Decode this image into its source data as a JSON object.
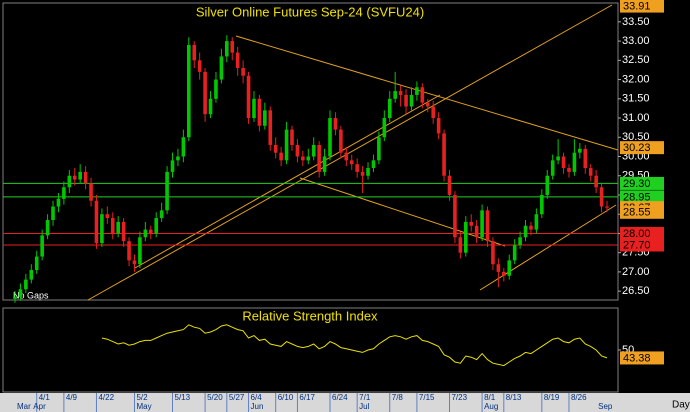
{
  "chart_data": {
    "type": "candlestick",
    "title": "Silver Online Futures Sep-24 (SVFU24)",
    "note": "No Gaps",
    "period": "Day",
    "up_color": "#00c800",
    "down_color": "#e82020",
    "ylim": [
      26.27,
      33.99
    ],
    "yticks": [
      {
        "value": 26.5,
        "label": "26.50"
      },
      {
        "value": 27,
        "label": "27.00"
      },
      {
        "value": 27.5,
        "label": "27.50"
      },
      {
        "value": 28,
        "label": "28.00"
      },
      {
        "value": 28.5,
        "label": "28.50"
      },
      {
        "value": 29,
        "label": "29.00"
      },
      {
        "value": 29.5,
        "label": "29.50"
      },
      {
        "value": 30,
        "label": "30.00"
      },
      {
        "value": 30.5,
        "label": "30.50"
      },
      {
        "value": 31,
        "label": "31.00"
      },
      {
        "value": 31.5,
        "label": "31.50"
      },
      {
        "value": 32,
        "label": "32.00"
      },
      {
        "value": 32.5,
        "label": "32.50"
      },
      {
        "value": 33,
        "label": "33.00"
      },
      {
        "value": 33.5,
        "label": "33.50"
      }
    ],
    "price_markers": [
      {
        "value": 33.91,
        "label": "33.91",
        "color": "#f0a020",
        "line": false
      },
      {
        "value": 30.23,
        "label": "30.23",
        "color": "#f0a020",
        "line": false
      },
      {
        "value": 29.3,
        "label": "29.30",
        "color": "#20d020",
        "line": true
      },
      {
        "value": 28.95,
        "label": "28.95",
        "color": "#20d020",
        "line": true
      },
      {
        "value": 28.67,
        "label": "28.67",
        "color": "#f0a020",
        "line": false
      },
      {
        "value": 28.55,
        "label": "28.55",
        "color": "#f0a020",
        "line": false
      },
      {
        "value": 28,
        "label": "28.00",
        "color": "#e82020",
        "line": true
      },
      {
        "value": 27.7,
        "label": "27.70",
        "color": "#e82020",
        "line": true
      }
    ],
    "categories": [
      null,
      null,
      null,
      null,
      "4/1",
      null,
      null,
      null,
      null,
      "4/9",
      null,
      null,
      null,
      null,
      null,
      "4/22",
      null,
      null,
      null,
      null,
      null,
      null,
      "5/2",
      null,
      null,
      null,
      null,
      null,
      null,
      "5/13",
      null,
      null,
      null,
      null,
      null,
      "5/20",
      null,
      null,
      null,
      "5/27",
      null,
      null,
      null,
      "6/4",
      null,
      null,
      null,
      null,
      "6/10",
      null,
      null,
      null,
      "6/17",
      null,
      null,
      null,
      null,
      null,
      "6/24",
      null,
      null,
      null,
      null,
      "7/1",
      null,
      null,
      null,
      null,
      null,
      "7/8",
      null,
      null,
      null,
      null,
      "7/15",
      null,
      null,
      null,
      null,
      null,
      "7/23",
      null,
      null,
      null,
      null,
      null,
      "8/1",
      null,
      null,
      null,
      "8/13",
      null,
      null,
      null,
      null,
      null,
      null,
      "8/19",
      null,
      null,
      null,
      null,
      "8/26",
      null,
      null,
      null,
      null,
      null,
      null,
      null
    ],
    "months": [
      "Mar",
      null,
      null,
      "Apr",
      null,
      null,
      null,
      null,
      null,
      null,
      null,
      null,
      null,
      null,
      null,
      null,
      null,
      null,
      null,
      null,
      null,
      null,
      "May",
      null,
      null,
      null,
      null,
      null,
      null,
      null,
      null,
      null,
      null,
      null,
      null,
      null,
      null,
      null,
      null,
      null,
      null,
      null,
      null,
      "Jun",
      null,
      null,
      null,
      null,
      null,
      null,
      null,
      null,
      null,
      null,
      null,
      null,
      null,
      null,
      null,
      null,
      null,
      null,
      null,
      "Jul",
      null,
      null,
      null,
      null,
      null,
      null,
      null,
      null,
      null,
      null,
      null,
      null,
      null,
      null,
      null,
      null,
      null,
      null,
      null,
      null,
      null,
      null,
      "Aug",
      null,
      null,
      null,
      null,
      null,
      null,
      null,
      null,
      null,
      null,
      null,
      null,
      null,
      null,
      null,
      null,
      null,
      null,
      null,
      null,
      "Sep",
      null,
      null
    ],
    "candles": [
      [
        26.3,
        26.5,
        26.2,
        26.35
      ],
      [
        26.35,
        26.7,
        26.25,
        26.55
      ],
      [
        26.55,
        26.95,
        26.45,
        26.8
      ],
      [
        26.8,
        27.2,
        26.7,
        27.05
      ],
      [
        27.05,
        27.55,
        26.95,
        27.4
      ],
      [
        27.4,
        28.1,
        27.3,
        27.95
      ],
      [
        27.95,
        28.5,
        27.85,
        28.35
      ],
      [
        28.35,
        28.85,
        28.2,
        28.7
      ],
      [
        28.7,
        29.05,
        28.55,
        28.9
      ],
      [
        28.9,
        29.35,
        28.75,
        29.2
      ],
      [
        29.2,
        29.65,
        29.05,
        29.5
      ],
      [
        29.5,
        29.7,
        29.25,
        29.4
      ],
      [
        29.4,
        29.8,
        29.3,
        29.6
      ],
      [
        29.6,
        29.75,
        29.15,
        29.3
      ],
      [
        29.3,
        29.45,
        28.7,
        28.85
      ],
      [
        28.85,
        29.0,
        27.6,
        27.75
      ],
      [
        27.75,
        28.65,
        27.65,
        28.5
      ],
      [
        28.5,
        28.7,
        28.25,
        28.4
      ],
      [
        28.4,
        28.55,
        27.85,
        28.0
      ],
      [
        28.0,
        28.45,
        27.9,
        28.3
      ],
      [
        28.3,
        28.4,
        27.65,
        27.8
      ],
      [
        27.8,
        27.9,
        27.15,
        27.3
      ],
      [
        27.3,
        27.45,
        27.0,
        27.2
      ],
      [
        27.2,
        28.05,
        27.1,
        27.9
      ],
      [
        27.9,
        28.3,
        27.8,
        28.1
      ],
      [
        28.1,
        28.2,
        27.85,
        28.0
      ],
      [
        28.0,
        28.55,
        27.9,
        28.4
      ],
      [
        28.4,
        28.8,
        28.3,
        28.6
      ],
      [
        28.6,
        29.75,
        28.5,
        29.6
      ],
      [
        29.6,
        30.1,
        29.45,
        29.9
      ],
      [
        29.9,
        30.2,
        29.75,
        30.0
      ],
      [
        30.0,
        30.7,
        29.85,
        30.5
      ],
      [
        30.5,
        33.1,
        30.4,
        32.9
      ],
      [
        32.9,
        33.0,
        32.3,
        32.5
      ],
      [
        32.5,
        32.7,
        32.0,
        32.2
      ],
      [
        32.2,
        32.3,
        30.9,
        31.1
      ],
      [
        31.1,
        31.7,
        31.0,
        31.5
      ],
      [
        31.5,
        32.2,
        31.4,
        32.0
      ],
      [
        32.0,
        32.8,
        31.9,
        32.6
      ],
      [
        32.6,
        33.15,
        32.45,
        33.0
      ],
      [
        33.0,
        33.1,
        32.5,
        32.7
      ],
      [
        32.7,
        32.85,
        32.1,
        32.3
      ],
      [
        32.3,
        32.5,
        31.9,
        32.1
      ],
      [
        32.1,
        32.2,
        30.85,
        31.0
      ],
      [
        31.0,
        31.7,
        30.9,
        31.5
      ],
      [
        31.5,
        31.6,
        30.65,
        30.8
      ],
      [
        30.8,
        31.4,
        30.7,
        31.2
      ],
      [
        31.2,
        31.3,
        30.15,
        30.3
      ],
      [
        30.3,
        30.5,
        29.95,
        30.1
      ],
      [
        30.1,
        30.25,
        29.75,
        29.9
      ],
      [
        29.9,
        30.9,
        29.8,
        30.7
      ],
      [
        30.7,
        30.8,
        30.15,
        30.3
      ],
      [
        30.3,
        30.45,
        29.85,
        30.0
      ],
      [
        30.0,
        30.15,
        29.75,
        29.9
      ],
      [
        29.9,
        30.2,
        29.8,
        30.0
      ],
      [
        30.0,
        30.5,
        29.9,
        30.3
      ],
      [
        30.3,
        30.4,
        29.45,
        29.6
      ],
      [
        29.6,
        30.2,
        29.5,
        30.0
      ],
      [
        30.0,
        31.2,
        29.9,
        31.0
      ],
      [
        31.0,
        31.15,
        30.55,
        30.7
      ],
      [
        30.7,
        30.8,
        29.95,
        30.1
      ],
      [
        30.1,
        30.25,
        29.75,
        29.9
      ],
      [
        29.9,
        30.05,
        29.65,
        29.8
      ],
      [
        29.8,
        29.95,
        29.45,
        29.6
      ],
      [
        29.6,
        29.75,
        29.05,
        29.5
      ],
      [
        29.5,
        29.85,
        29.4,
        29.7
      ],
      [
        29.7,
        30.05,
        29.6,
        29.9
      ],
      [
        29.9,
        30.65,
        29.8,
        30.5
      ],
      [
        30.5,
        31.2,
        30.4,
        31.0
      ],
      [
        31.0,
        31.7,
        30.9,
        31.5
      ],
      [
        31.5,
        32.2,
        31.4,
        31.7
      ],
      [
        31.7,
        31.85,
        31.3,
        31.6
      ],
      [
        31.6,
        31.75,
        31.1,
        31.3
      ],
      [
        31.3,
        31.8,
        31.2,
        31.6
      ],
      [
        31.6,
        31.95,
        31.45,
        31.8
      ],
      [
        31.8,
        31.9,
        31.25,
        31.4
      ],
      [
        31.4,
        31.5,
        31.15,
        31.3
      ],
      [
        31.3,
        31.45,
        30.85,
        31.0
      ],
      [
        31.0,
        31.15,
        30.45,
        30.6
      ],
      [
        30.6,
        30.7,
        29.35,
        29.5
      ],
      [
        29.5,
        29.65,
        28.85,
        29.0
      ],
      [
        29.0,
        29.1,
        27.75,
        27.9
      ],
      [
        27.9,
        28.05,
        27.35,
        27.5
      ],
      [
        27.5,
        28.45,
        27.4,
        28.3
      ],
      [
        28.3,
        28.5,
        28.05,
        28.2
      ],
      [
        28.2,
        28.35,
        27.75,
        27.9
      ],
      [
        27.9,
        28.75,
        27.8,
        28.6
      ],
      [
        28.6,
        28.7,
        27.65,
        27.8
      ],
      [
        27.8,
        27.9,
        27.05,
        27.2
      ],
      [
        27.2,
        27.35,
        26.6,
        27.0
      ],
      [
        27.0,
        27.1,
        26.75,
        26.9
      ],
      [
        26.9,
        27.45,
        26.8,
        27.3
      ],
      [
        27.3,
        27.85,
        27.2,
        27.7
      ],
      [
        27.7,
        28.05,
        27.6,
        27.9
      ],
      [
        27.9,
        28.35,
        27.8,
        28.2
      ],
      [
        28.2,
        28.3,
        27.95,
        28.1
      ],
      [
        28.1,
        28.65,
        28.0,
        28.5
      ],
      [
        28.5,
        29.15,
        28.4,
        29.0
      ],
      [
        29.0,
        29.65,
        28.9,
        29.5
      ],
      [
        29.5,
        30.05,
        29.4,
        29.9
      ],
      [
        29.9,
        30.45,
        29.8,
        30.0
      ],
      [
        30.0,
        30.1,
        29.55,
        29.7
      ],
      [
        29.7,
        29.8,
        29.45,
        29.6
      ],
      [
        29.6,
        30.45,
        29.5,
        30.1
      ],
      [
        30.1,
        30.35,
        29.95,
        30.2
      ],
      [
        30.2,
        30.3,
        29.55,
        29.7
      ],
      [
        29.7,
        29.8,
        29.35,
        29.5
      ],
      [
        29.5,
        29.65,
        29.05,
        29.2
      ],
      [
        29.2,
        29.3,
        28.55,
        28.7
      ],
      [
        28.7,
        28.85,
        28.55,
        28.67
      ]
    ],
    "rsi": {
      "title": "Relative Strength Index",
      "color": "#e8e000",
      "label_color": "#f0a020",
      "ylim": [
        15,
        85
      ],
      "yticks": [
        50
      ],
      "values": [
        null,
        null,
        null,
        null,
        null,
        null,
        null,
        null,
        null,
        null,
        null,
        null,
        null,
        null,
        null,
        null,
        60,
        59,
        57,
        55,
        56,
        54,
        55,
        57,
        58,
        58,
        60,
        62,
        64,
        65,
        66,
        67,
        71,
        69,
        68,
        64,
        65,
        67,
        70,
        71,
        69,
        67,
        66,
        60,
        62,
        58,
        59,
        55,
        54,
        53,
        57,
        55,
        53,
        52,
        53,
        55,
        51,
        53,
        57,
        55,
        52,
        51,
        50,
        49,
        48,
        50,
        51,
        55,
        58,
        61,
        62,
        61,
        59,
        61,
        62,
        58,
        57,
        55,
        53,
        46,
        44,
        40,
        39,
        45,
        44,
        42,
        47,
        42,
        39,
        38,
        37,
        40,
        43,
        45,
        48,
        47,
        50,
        53,
        56,
        59,
        60,
        57,
        56,
        59,
        60,
        55,
        53,
        50,
        45,
        43.38
      ]
    }
  }
}
